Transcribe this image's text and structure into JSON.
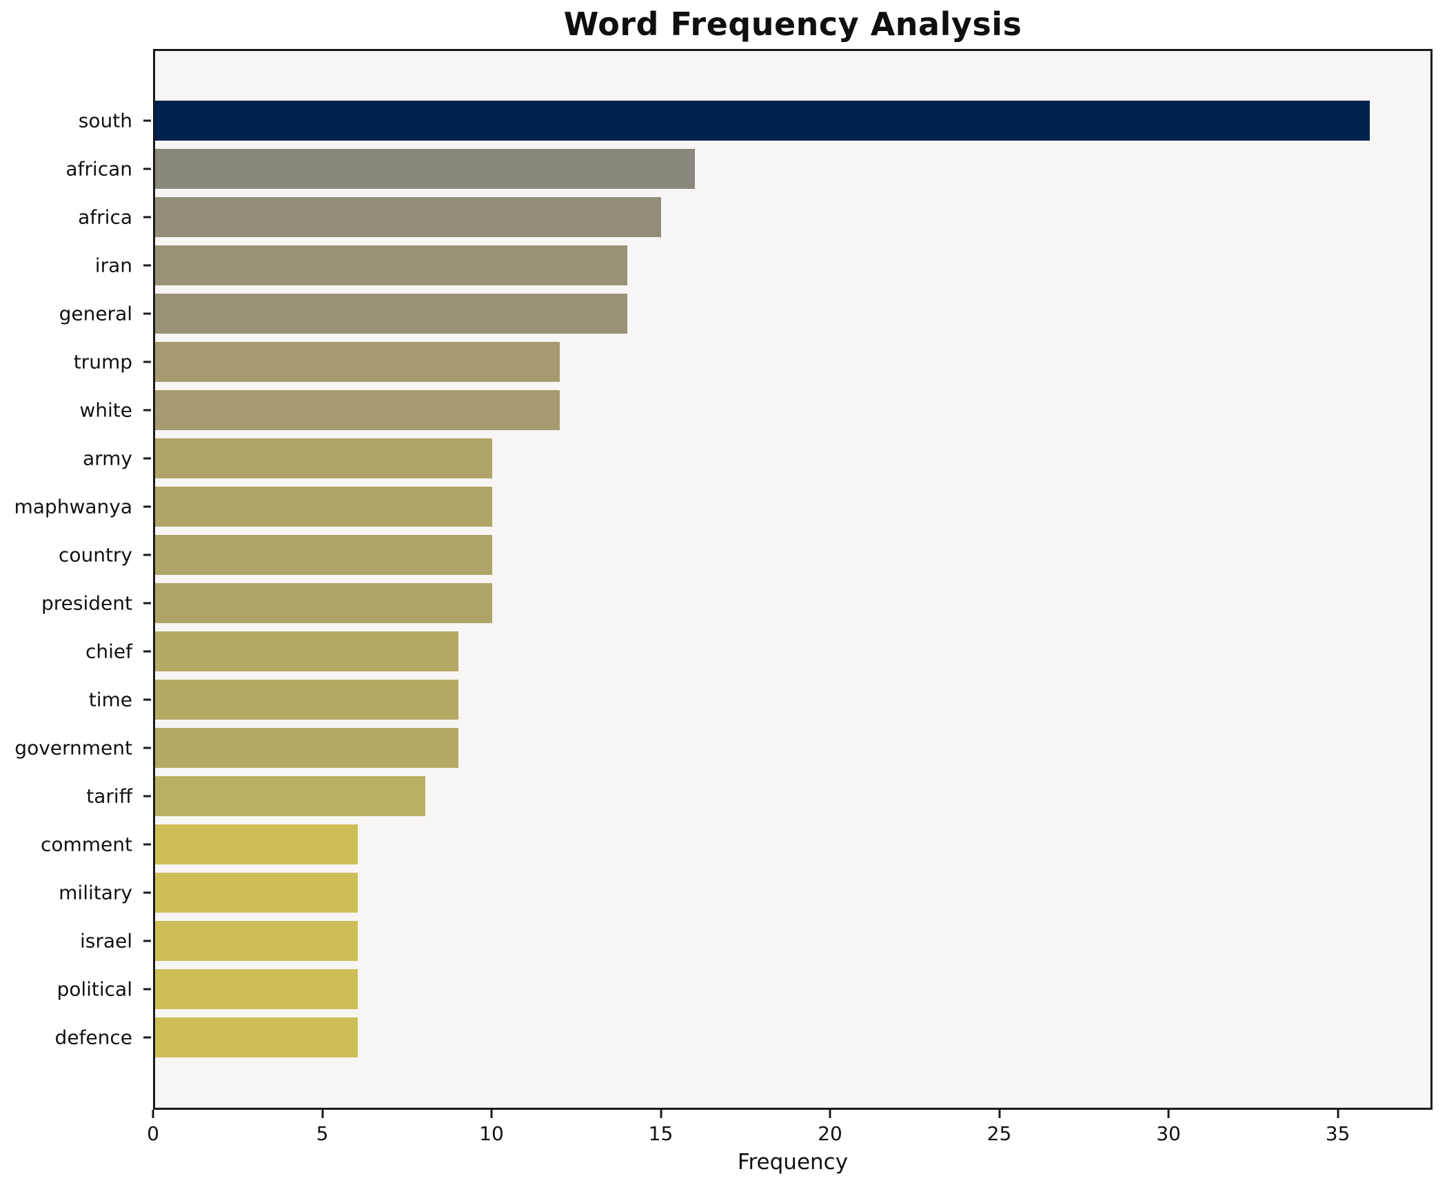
{
  "chart_data": {
    "type": "bar",
    "orientation": "horizontal",
    "title": "Word Frequency Analysis",
    "xlabel": "Frequency",
    "ylabel": "",
    "categories": [
      "south",
      "african",
      "africa",
      "iran",
      "general",
      "trump",
      "white",
      "army",
      "maphwanya",
      "country",
      "president",
      "chief",
      "time",
      "government",
      "tariff",
      "comment",
      "military",
      "israel",
      "political",
      "defence"
    ],
    "values": [
      36,
      16,
      15,
      14,
      14,
      12,
      12,
      10,
      10,
      10,
      10,
      9,
      9,
      9,
      8,
      6,
      6,
      6,
      6,
      6
    ],
    "bar_colors": [
      "#00224e",
      "#8a877c",
      "#918d79",
      "#989276",
      "#989276",
      "#a49b70",
      "#a49b70",
      "#afa468",
      "#afa468",
      "#afa468",
      "#afa468",
      "#b5aa64",
      "#b5aa64",
      "#b5aa64",
      "#bbb061",
      "#cebe58",
      "#cebe58",
      "#cebe58",
      "#cebe58",
      "#cebe58"
    ],
    "xlim": [
      0,
      37.8
    ],
    "xticks": [
      0,
      5,
      10,
      15,
      20,
      25,
      30,
      35
    ],
    "grid": false,
    "legend": null,
    "colors": {
      "plot_background": "#f7f6f4",
      "figure_background": "#ffffff",
      "spine": "#1a1a1a",
      "text": "#111111"
    }
  }
}
